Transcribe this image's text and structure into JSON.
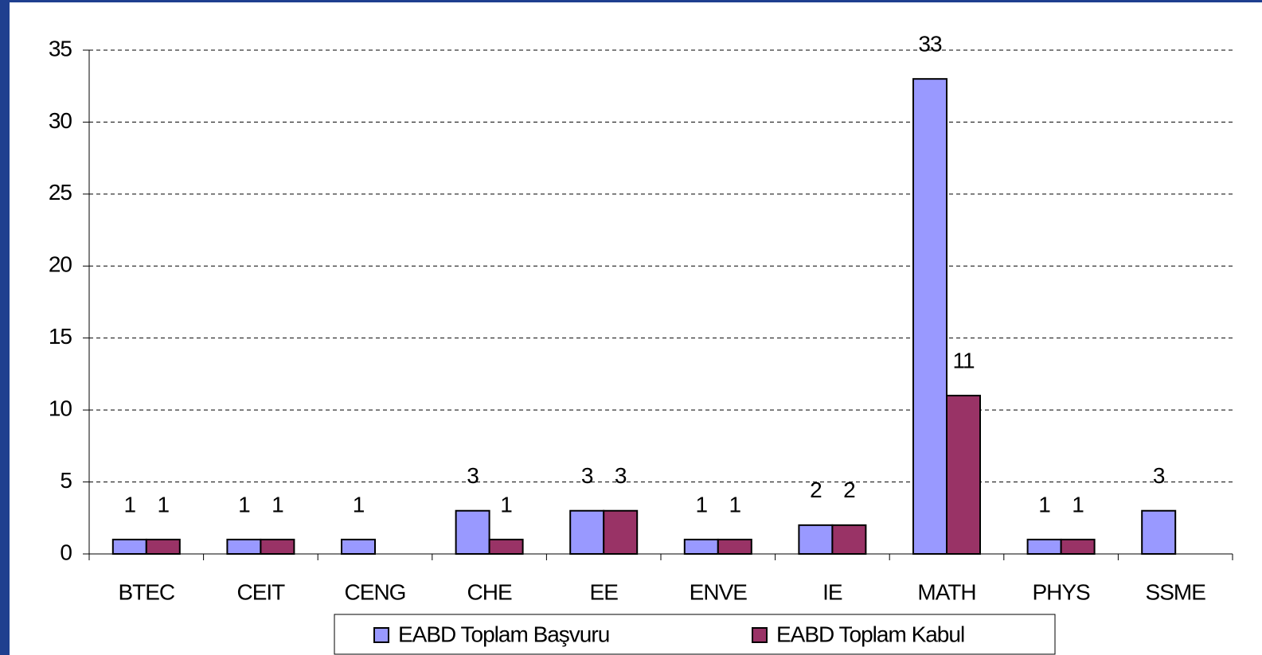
{
  "chart_data": {
    "type": "bar",
    "categories": [
      "BTEC",
      "CEIT",
      "CENG",
      "CHE",
      "EE",
      "ENVE",
      "IE",
      "MATH",
      "PHYS",
      "SSME"
    ],
    "series": [
      {
        "name": "EABD Toplam Başvuru",
        "color": "#9999ff",
        "values": [
          1,
          1,
          1,
          3,
          3,
          1,
          2,
          33,
          1,
          3
        ]
      },
      {
        "name": "EABD Toplam Kabul",
        "color": "#993366",
        "values": [
          1,
          1,
          null,
          1,
          3,
          1,
          2,
          11,
          1,
          null
        ]
      }
    ],
    "ylim": [
      0,
      35
    ],
    "yticks": [
      0,
      5,
      10,
      15,
      20,
      25,
      30,
      35
    ],
    "grid": true,
    "legend": "bottom"
  }
}
